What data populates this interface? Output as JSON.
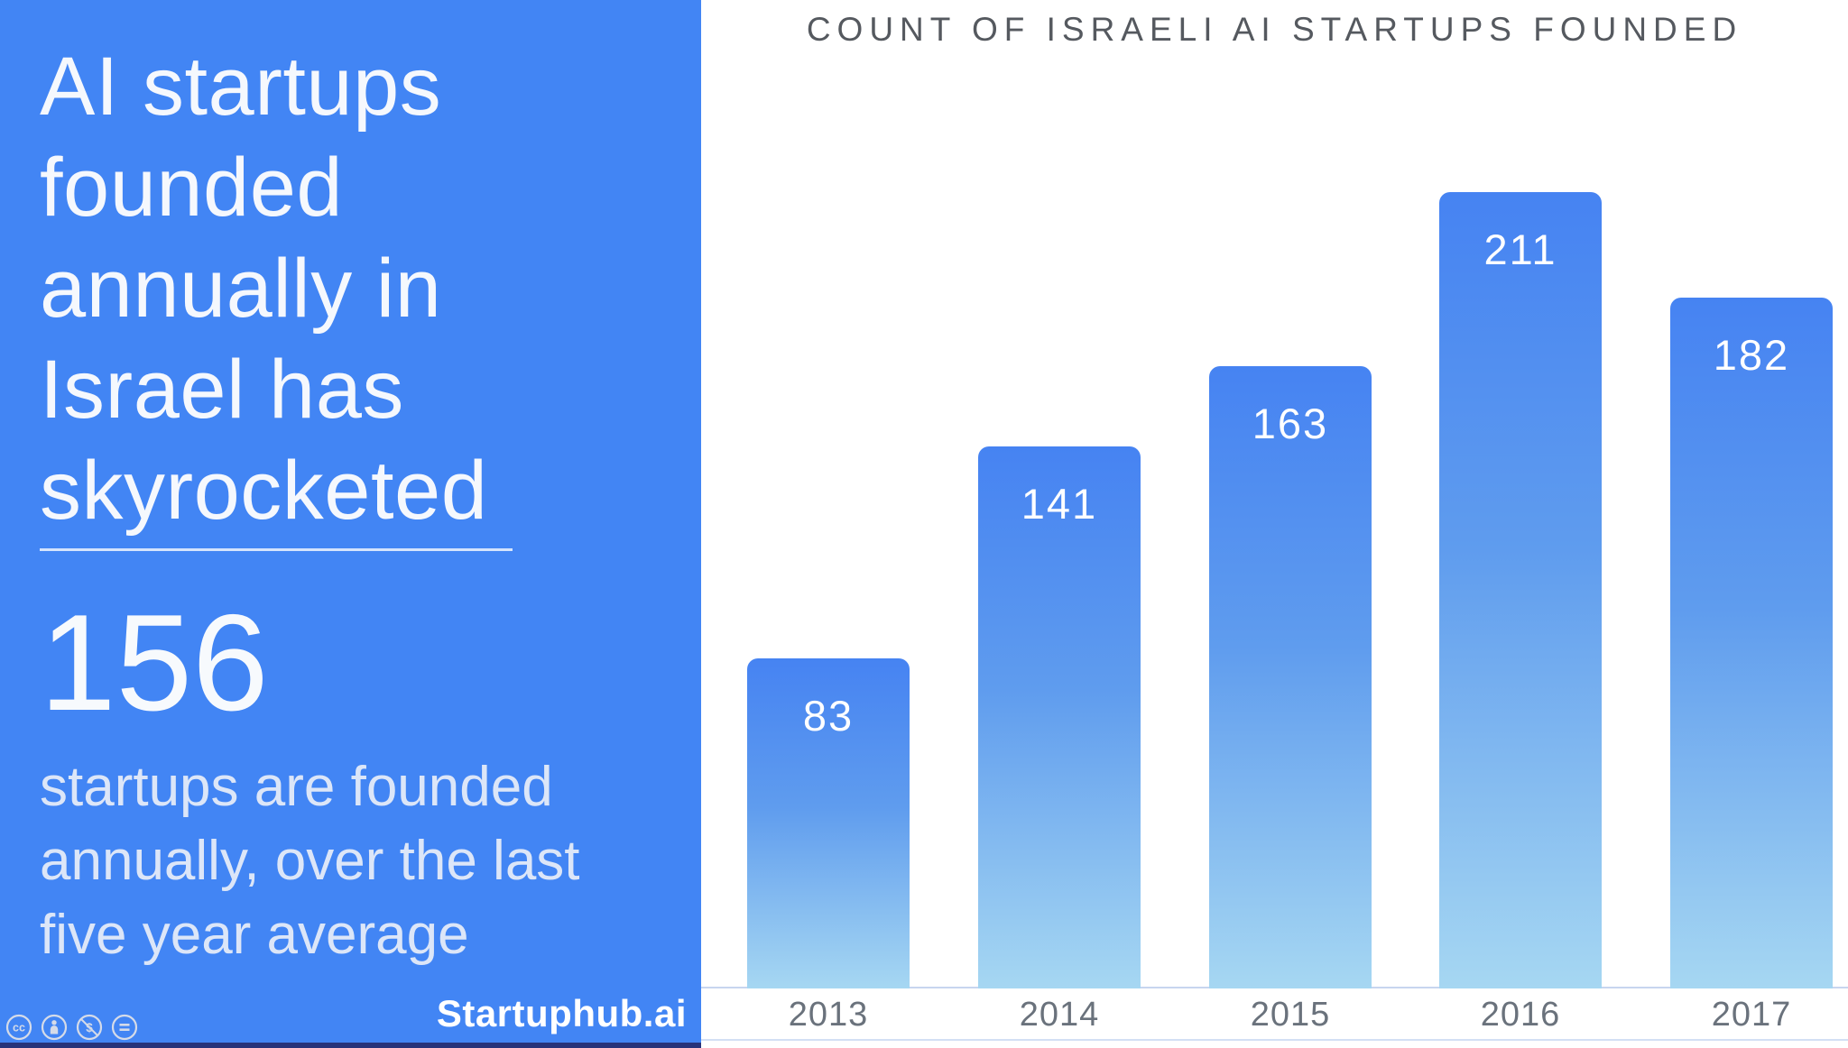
{
  "left_panel": {
    "title": "AI startups founded annually in Israel has skyrocketed",
    "title_lines": [
      "AI startups",
      "founded",
      "annually in",
      "Israel has",
      "skyrocketed"
    ],
    "stat_value": "156",
    "stat_description": "startups are founded annually, over the last five year average",
    "stat_description_lines": [
      "startups are founded",
      "annually, over the last",
      "five year average"
    ],
    "brand": "Startuphub.ai",
    "license_icons": [
      "cc-icon",
      "cc-by-icon",
      "cc-nc-icon",
      "cc-nd-icon"
    ],
    "colors": {
      "background": "#4285f4",
      "bottom_strip": "#27337a",
      "title_text": "#f5f8fd",
      "description_text": "#dce6f8"
    }
  },
  "chart_data": {
    "type": "bar",
    "title": "COUNT OF ISRAELI AI STARTUPS FOUNDED",
    "categories": [
      "2013",
      "2014",
      "2015",
      "2016",
      "2017"
    ],
    "values": [
      83,
      141,
      163,
      211,
      182
    ],
    "xlabel": "",
    "ylabel": "",
    "ylim": [
      0,
      230
    ],
    "grid": false,
    "legend": false,
    "data_labels": "inside-top",
    "bar_gradient_top": "#4683f2",
    "bar_gradient_bottom": "#a6d7f2",
    "value_label_color": "#ffffff",
    "tick_label_color": "#6a727c",
    "title_color": "#55595f",
    "axis_line_color": "#c7d5ef"
  }
}
